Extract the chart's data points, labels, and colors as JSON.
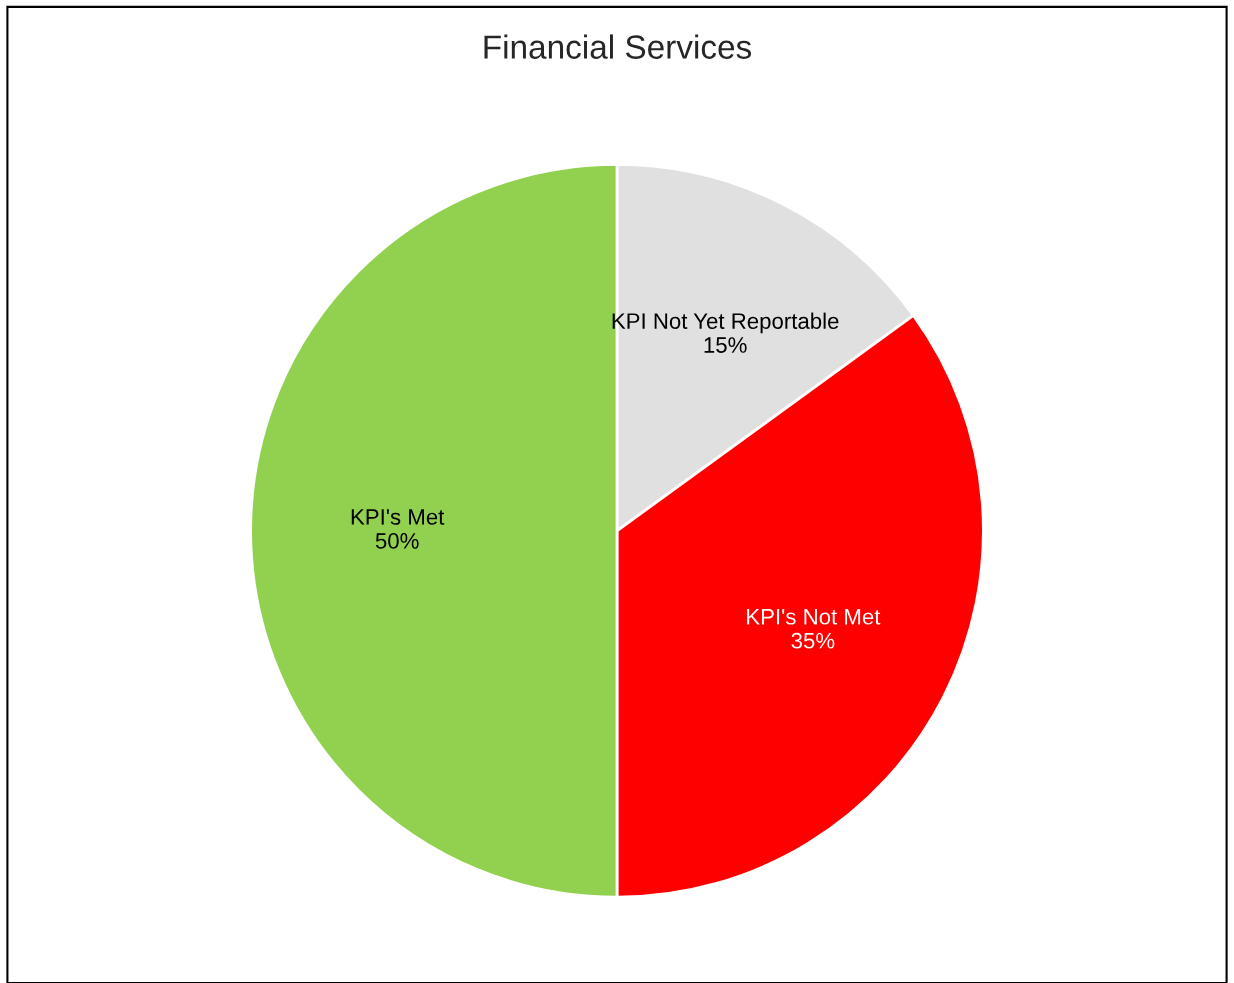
{
  "chart_data": {
    "type": "pie",
    "title": "Financial Services",
    "categories": [
      "KPI Not Yet Reportable",
      "KPI's Not Met",
      "KPI's Met"
    ],
    "values": [
      15,
      35,
      50
    ],
    "colors": [
      "#e0e0e0",
      "#ff0000",
      "#92d050"
    ],
    "value_labels": [
      "15%",
      "35%",
      "50%"
    ],
    "legend": false
  }
}
